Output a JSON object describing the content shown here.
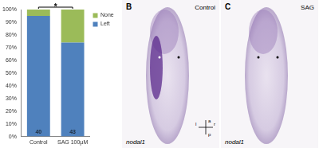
{
  "chart_data": {
    "type": "bar",
    "stacked": true,
    "categories": [
      "Control",
      "SAG 100µM"
    ],
    "series": [
      {
        "name": "Left",
        "color": "#4f81bd",
        "values": [
          95,
          74
        ]
      },
      {
        "name": "None",
        "color": "#9bbb59",
        "values": [
          5,
          26
        ]
      }
    ],
    "sample_sizes": [
      40,
      43
    ],
    "annotations": [
      {
        "text": "*"
      }
    ],
    "ylim": [
      0,
      100
    ],
    "yticks": [
      {
        "value": 0,
        "label": "0%"
      },
      {
        "value": 10,
        "label": "10%"
      },
      {
        "value": 20,
        "label": "20%"
      },
      {
        "value": 30,
        "label": "30%"
      },
      {
        "value": 40,
        "label": "40%"
      },
      {
        "value": 50,
        "label": "50%"
      },
      {
        "value": 60,
        "label": "60%"
      },
      {
        "value": 70,
        "label": "70%"
      },
      {
        "value": 80,
        "label": "80%"
      },
      {
        "value": 90,
        "label": "90%"
      },
      {
        "value": 100,
        "label": "100%"
      }
    ],
    "grid": false,
    "legend": "upper right"
  },
  "images": [
    {
      "panel": "B",
      "condition": "Control",
      "gene": "nodal1",
      "expression": "left",
      "orientation": {
        "up": "a",
        "down": "p",
        "left": "l",
        "right": "r"
      }
    },
    {
      "panel": "C",
      "condition": "SAG",
      "gene": "nodal1",
      "expression": "none"
    }
  ]
}
